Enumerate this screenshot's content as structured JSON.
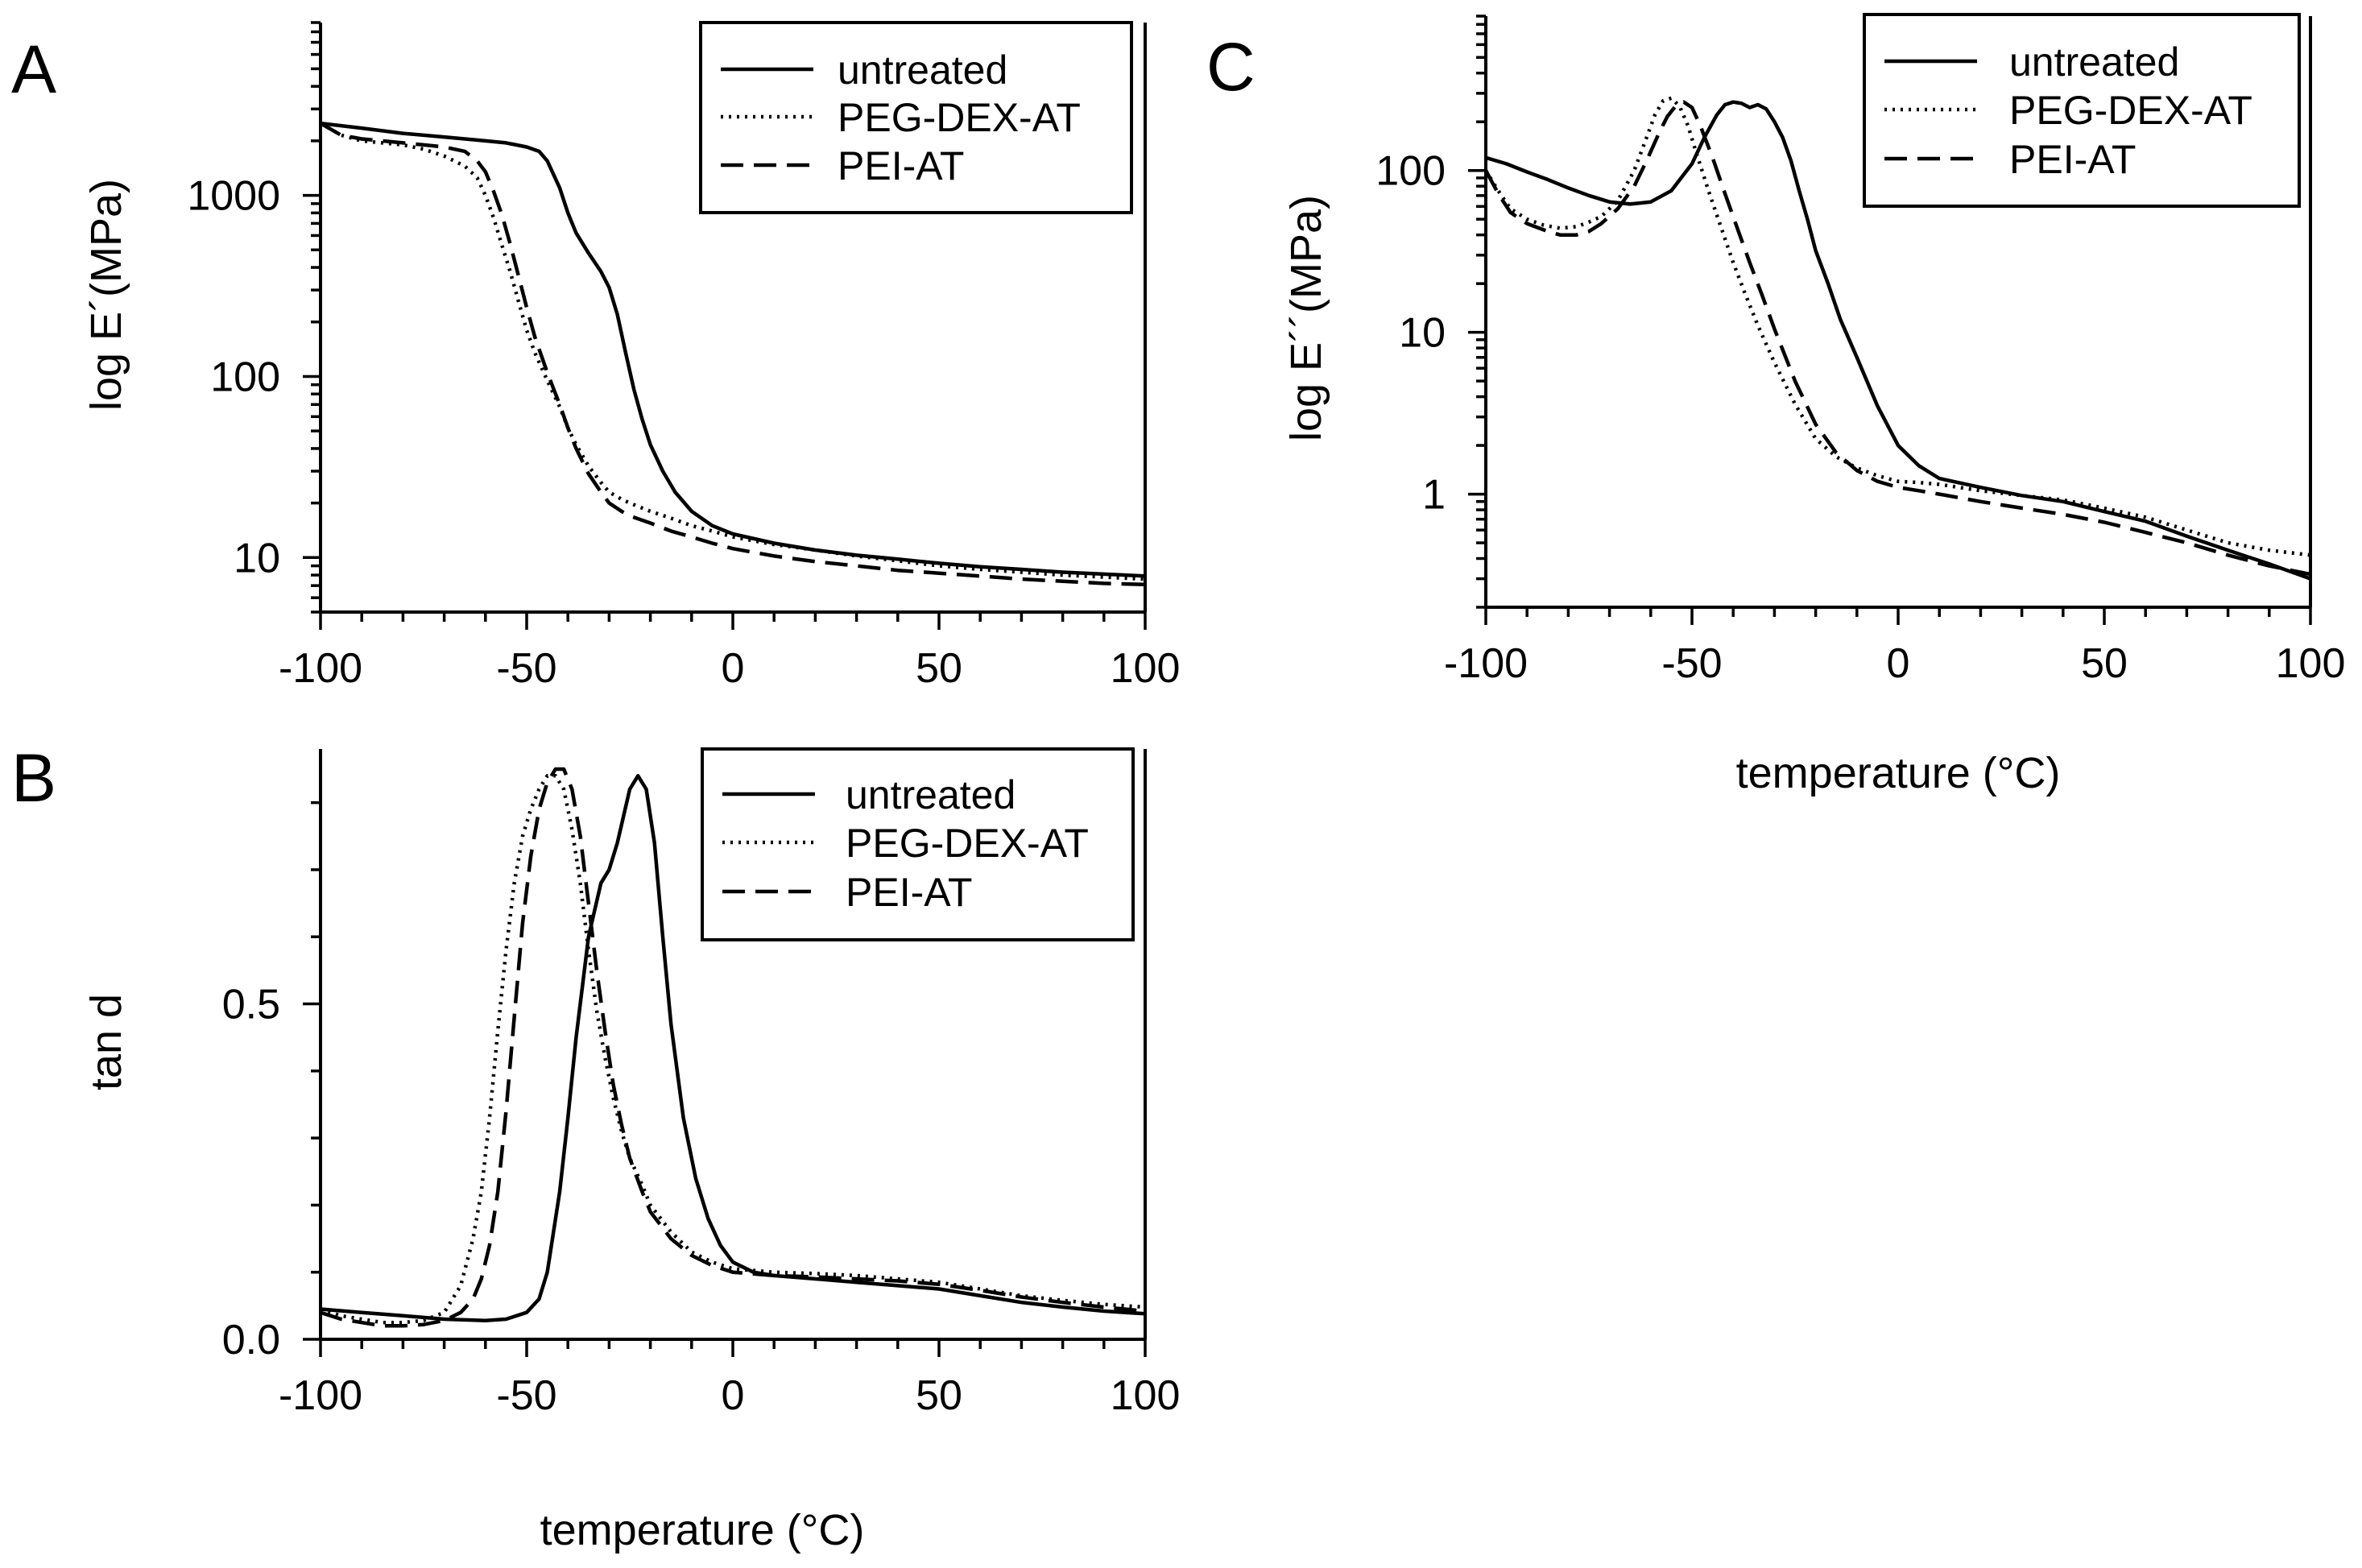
{
  "figure": {
    "background": "#ffffff",
    "line_color": "#000000"
  },
  "chart_data": [
    {
      "id": "A",
      "panel_label": "A",
      "type": "line",
      "title": "",
      "xlabel": "",
      "ylabel": "log E´(MPa)",
      "xlim": [
        -100,
        100
      ],
      "ylim": [
        5,
        9000
      ],
      "yscale": "log",
      "xticks": [
        -100,
        -50,
        0,
        50,
        100
      ],
      "xtick_labels": [
        "-100",
        "-50",
        "0",
        "50",
        "100"
      ],
      "yticks": [
        10,
        100,
        1000
      ],
      "ytick_labels": [
        "10",
        "100",
        "1000"
      ],
      "grid": false,
      "legend_position": "top-right",
      "series": [
        {
          "name": "untreated",
          "style": "solid",
          "x": [
            -100,
            -90,
            -80,
            -70,
            -60,
            -55,
            -50,
            -47,
            -45,
            -42,
            -40,
            -38,
            -35,
            -32,
            -30,
            -28,
            -26,
            -24,
            -22,
            -20,
            -17,
            -14,
            -10,
            -5,
            0,
            10,
            20,
            30,
            40,
            50,
            60,
            70,
            80,
            90,
            100
          ],
          "y": [
            2500,
            2350,
            2200,
            2100,
            2000,
            1950,
            1850,
            1750,
            1550,
            1100,
            800,
            620,
            480,
            380,
            310,
            220,
            135,
            85,
            58,
            42,
            30,
            23,
            18,
            15,
            13.5,
            12,
            11,
            10.3,
            9.8,
            9.3,
            8.9,
            8.6,
            8.3,
            8.1,
            7.9
          ]
        },
        {
          "name": "PEG-DEX-AT",
          "style": "dotted",
          "x": [
            -100,
            -95,
            -90,
            -85,
            -80,
            -75,
            -70,
            -65,
            -62,
            -60,
            -58,
            -56,
            -54,
            -52,
            -50,
            -48,
            -45,
            -42,
            -40,
            -38,
            -35,
            -32,
            -30,
            -27,
            -25,
            -20,
            -15,
            -10,
            -5,
            0,
            10,
            20,
            30,
            40,
            50,
            60,
            70,
            80,
            90,
            100
          ],
          "y": [
            2500,
            2150,
            2000,
            1950,
            1900,
            1800,
            1650,
            1450,
            1250,
            1000,
            750,
            530,
            380,
            260,
            180,
            135,
            95,
            68,
            52,
            42,
            32,
            26,
            23,
            21,
            20,
            18,
            16.5,
            15,
            14,
            13,
            11.8,
            11,
            10.2,
            9.6,
            9,
            8.6,
            8.3,
            8,
            7.8,
            7.6
          ]
        },
        {
          "name": "PEI-AT",
          "style": "dashed",
          "x": [
            -100,
            -95,
            -90,
            -85,
            -80,
            -75,
            -70,
            -65,
            -62,
            -60,
            -58,
            -56,
            -54,
            -52,
            -50,
            -48,
            -45,
            -42,
            -40,
            -38,
            -35,
            -32,
            -30,
            -27,
            -25,
            -20,
            -15,
            -10,
            -5,
            0,
            10,
            20,
            30,
            40,
            50,
            60,
            70,
            80,
            90,
            100
          ],
          "y": [
            2500,
            2150,
            2050,
            2000,
            1950,
            1900,
            1850,
            1750,
            1550,
            1350,
            1050,
            780,
            540,
            360,
            240,
            165,
            105,
            70,
            52,
            40,
            29,
            23,
            20,
            18,
            17,
            15.5,
            14,
            13,
            12,
            11.2,
            10.2,
            9.5,
            9,
            8.5,
            8.2,
            7.9,
            7.6,
            7.4,
            7.2,
            7.1
          ]
        }
      ]
    },
    {
      "id": "B",
      "panel_label": "B",
      "type": "line",
      "title": "",
      "xlabel": "temperature (°C)",
      "ylabel": "tan d",
      "xlim": [
        -100,
        100
      ],
      "ylim": [
        0,
        0.88
      ],
      "yscale": "linear",
      "xticks": [
        -100,
        -50,
        0,
        50,
        100
      ],
      "xtick_labels": [
        "-100",
        "-50",
        "0",
        "50",
        "100"
      ],
      "yticks": [
        0.0,
        0.5
      ],
      "ytick_labels": [
        "0.0",
        "0.5"
      ],
      "grid": false,
      "legend_position": "top-right",
      "series": [
        {
          "name": "untreated",
          "style": "solid",
          "x": [
            -100,
            -90,
            -80,
            -70,
            -60,
            -55,
            -50,
            -47,
            -45,
            -42,
            -40,
            -38,
            -35,
            -32,
            -30,
            -28,
            -25,
            -23,
            -21,
            -19,
            -17,
            -15,
            -12,
            -9,
            -6,
            -3,
            0,
            5,
            10,
            20,
            30,
            40,
            50,
            60,
            70,
            80,
            90,
            100
          ],
          "y": [
            0.045,
            0.04,
            0.035,
            0.03,
            0.028,
            0.03,
            0.04,
            0.06,
            0.1,
            0.22,
            0.33,
            0.45,
            0.6,
            0.68,
            0.7,
            0.74,
            0.82,
            0.84,
            0.82,
            0.74,
            0.6,
            0.47,
            0.33,
            0.24,
            0.18,
            0.14,
            0.115,
            0.1,
            0.095,
            0.09,
            0.085,
            0.08,
            0.075,
            0.065,
            0.055,
            0.048,
            0.042,
            0.038
          ]
        },
        {
          "name": "PEG-DEX-AT",
          "style": "dotted",
          "x": [
            -100,
            -95,
            -90,
            -85,
            -80,
            -75,
            -70,
            -66,
            -63,
            -61,
            -59,
            -57,
            -55,
            -53,
            -51,
            -49,
            -47,
            -45,
            -43,
            -41,
            -39,
            -37,
            -35,
            -33,
            -31,
            -29,
            -27,
            -25,
            -22,
            -20,
            -15,
            -10,
            -5,
            0,
            10,
            20,
            30,
            40,
            50,
            60,
            70,
            80,
            90,
            100
          ],
          "y": [
            0.045,
            0.035,
            0.03,
            0.025,
            0.025,
            0.028,
            0.04,
            0.08,
            0.15,
            0.22,
            0.33,
            0.46,
            0.58,
            0.68,
            0.75,
            0.79,
            0.82,
            0.84,
            0.84,
            0.82,
            0.76,
            0.68,
            0.58,
            0.49,
            0.42,
            0.36,
            0.31,
            0.27,
            0.23,
            0.2,
            0.16,
            0.13,
            0.115,
            0.105,
            0.1,
            0.098,
            0.095,
            0.09,
            0.085,
            0.075,
            0.065,
            0.058,
            0.052,
            0.048
          ]
        },
        {
          "name": "PEI-AT",
          "style": "dashed",
          "x": [
            -100,
            -95,
            -90,
            -85,
            -80,
            -75,
            -70,
            -66,
            -63,
            -61,
            -59,
            -57,
            -55,
            -53,
            -51,
            -49,
            -47,
            -45,
            -43,
            -41,
            -39,
            -37,
            -35,
            -33,
            -31,
            -29,
            -27,
            -25,
            -22,
            -20,
            -15,
            -10,
            -5,
            0,
            10,
            20,
            30,
            40,
            50,
            60,
            70,
            80,
            90,
            100
          ],
          "y": [
            0.04,
            0.03,
            0.025,
            0.02,
            0.02,
            0.022,
            0.028,
            0.04,
            0.06,
            0.09,
            0.14,
            0.22,
            0.34,
            0.48,
            0.62,
            0.72,
            0.79,
            0.83,
            0.85,
            0.85,
            0.82,
            0.75,
            0.65,
            0.55,
            0.46,
            0.38,
            0.32,
            0.27,
            0.22,
            0.19,
            0.15,
            0.125,
            0.11,
            0.1,
            0.095,
            0.093,
            0.09,
            0.087,
            0.082,
            0.073,
            0.063,
            0.055,
            0.048,
            0.042
          ]
        }
      ]
    },
    {
      "id": "C",
      "panel_label": "C",
      "type": "line",
      "title": "",
      "xlabel": "temperature (°C)",
      "ylabel": "log E´´(MPa)",
      "xlim": [
        -100,
        100
      ],
      "ylim": [
        0.2,
        900
      ],
      "yscale": "log",
      "xticks": [
        -100,
        -50,
        0,
        50,
        100
      ],
      "xtick_labels": [
        "-100",
        "-50",
        "0",
        "50",
        "100"
      ],
      "yticks": [
        1,
        10,
        100
      ],
      "ytick_labels": [
        "1",
        "10",
        "100"
      ],
      "grid": false,
      "legend_position": "top-right",
      "series": [
        {
          "name": "untreated",
          "style": "solid",
          "x": [
            -100,
            -95,
            -90,
            -85,
            -80,
            -75,
            -70,
            -65,
            -60,
            -55,
            -50,
            -47,
            -44,
            -42,
            -40,
            -38,
            -36,
            -34,
            -32,
            -30,
            -28,
            -26,
            -24,
            -22,
            -20,
            -17,
            -14,
            -10,
            -5,
            0,
            5,
            10,
            20,
            30,
            40,
            50,
            60,
            70,
            80,
            90,
            100
          ],
          "y": [
            120,
            110,
            98,
            88,
            78,
            70,
            64,
            62,
            64,
            75,
            110,
            160,
            220,
            255,
            265,
            260,
            245,
            255,
            240,
            200,
            160,
            115,
            75,
            50,
            32,
            20,
            12,
            7,
            3.5,
            2,
            1.5,
            1.25,
            1.1,
            0.98,
            0.9,
            0.78,
            0.68,
            0.55,
            0.45,
            0.37,
            0.3
          ]
        },
        {
          "name": "PEG-DEX-AT",
          "style": "dotted",
          "x": [
            -100,
            -97,
            -94,
            -90,
            -86,
            -82,
            -78,
            -75,
            -72,
            -68,
            -64,
            -61,
            -59,
            -57,
            -55,
            -53,
            -51,
            -49,
            -46,
            -43,
            -40,
            -37,
            -34,
            -30,
            -25,
            -20,
            -15,
            -10,
            -5,
            0,
            5,
            10,
            20,
            30,
            40,
            50,
            60,
            70,
            80,
            90,
            100
          ],
          "y": [
            100,
            75,
            58,
            50,
            46,
            44,
            45,
            48,
            52,
            65,
            100,
            160,
            220,
            270,
            280,
            250,
            190,
            130,
            75,
            45,
            27,
            17,
            11,
            6.5,
            3.6,
            2.2,
            1.7,
            1.45,
            1.3,
            1.2,
            1.18,
            1.15,
            1.05,
            0.98,
            0.92,
            0.82,
            0.72,
            0.6,
            0.5,
            0.45,
            0.42
          ]
        },
        {
          "name": "PEI-AT",
          "style": "dashed",
          "x": [
            -100,
            -97,
            -94,
            -90,
            -86,
            -82,
            -78,
            -75,
            -72,
            -68,
            -64,
            -61,
            -58,
            -56,
            -54,
            -52,
            -50,
            -48,
            -45,
            -42,
            -39,
            -36,
            -33,
            -30,
            -25,
            -20,
            -15,
            -10,
            -5,
            0,
            5,
            10,
            20,
            30,
            40,
            50,
            60,
            70,
            80,
            90,
            100
          ],
          "y": [
            100,
            72,
            55,
            47,
            43,
            40,
            40,
            42,
            47,
            58,
            80,
            115,
            170,
            215,
            250,
            265,
            245,
            190,
            120,
            72,
            44,
            27,
            17,
            10.5,
            5,
            2.7,
            1.8,
            1.4,
            1.2,
            1.1,
            1.05,
            1.0,
            0.9,
            0.82,
            0.75,
            0.67,
            0.58,
            0.5,
            0.42,
            0.36,
            0.32
          ]
        }
      ]
    }
  ]
}
